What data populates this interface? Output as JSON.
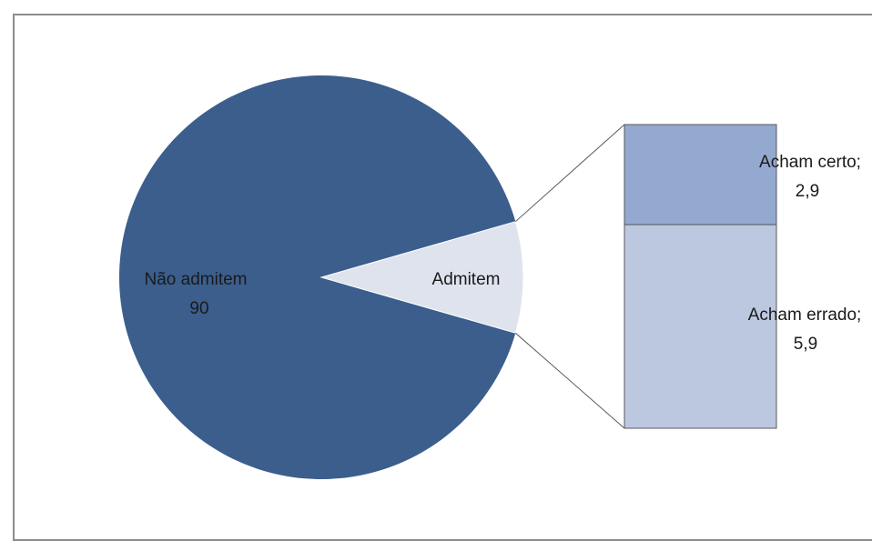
{
  "chart_data": {
    "type": "pie",
    "title": "",
    "slices": [
      {
        "label": "Não admitem",
        "value": 90,
        "value_text": "90",
        "color": "#3b5e8c"
      },
      {
        "label": "Admitem",
        "value": 8.8,
        "value_text": "",
        "color": "#dfe3ed"
      }
    ],
    "breakdown": {
      "parent": "Admitem",
      "type": "stacked-bar",
      "items": [
        {
          "label": "Acham certo;",
          "value": 2.9,
          "value_text": "2,9",
          "color": "#94a9d0"
        },
        {
          "label": "Acham errado;",
          "value": 5.9,
          "value_text": "5,9",
          "color": "#bcc8e0"
        }
      ]
    },
    "legend": "none",
    "colors": {
      "border": "#8c8c8c",
      "outline": "#595959",
      "connector": "#595959"
    }
  }
}
